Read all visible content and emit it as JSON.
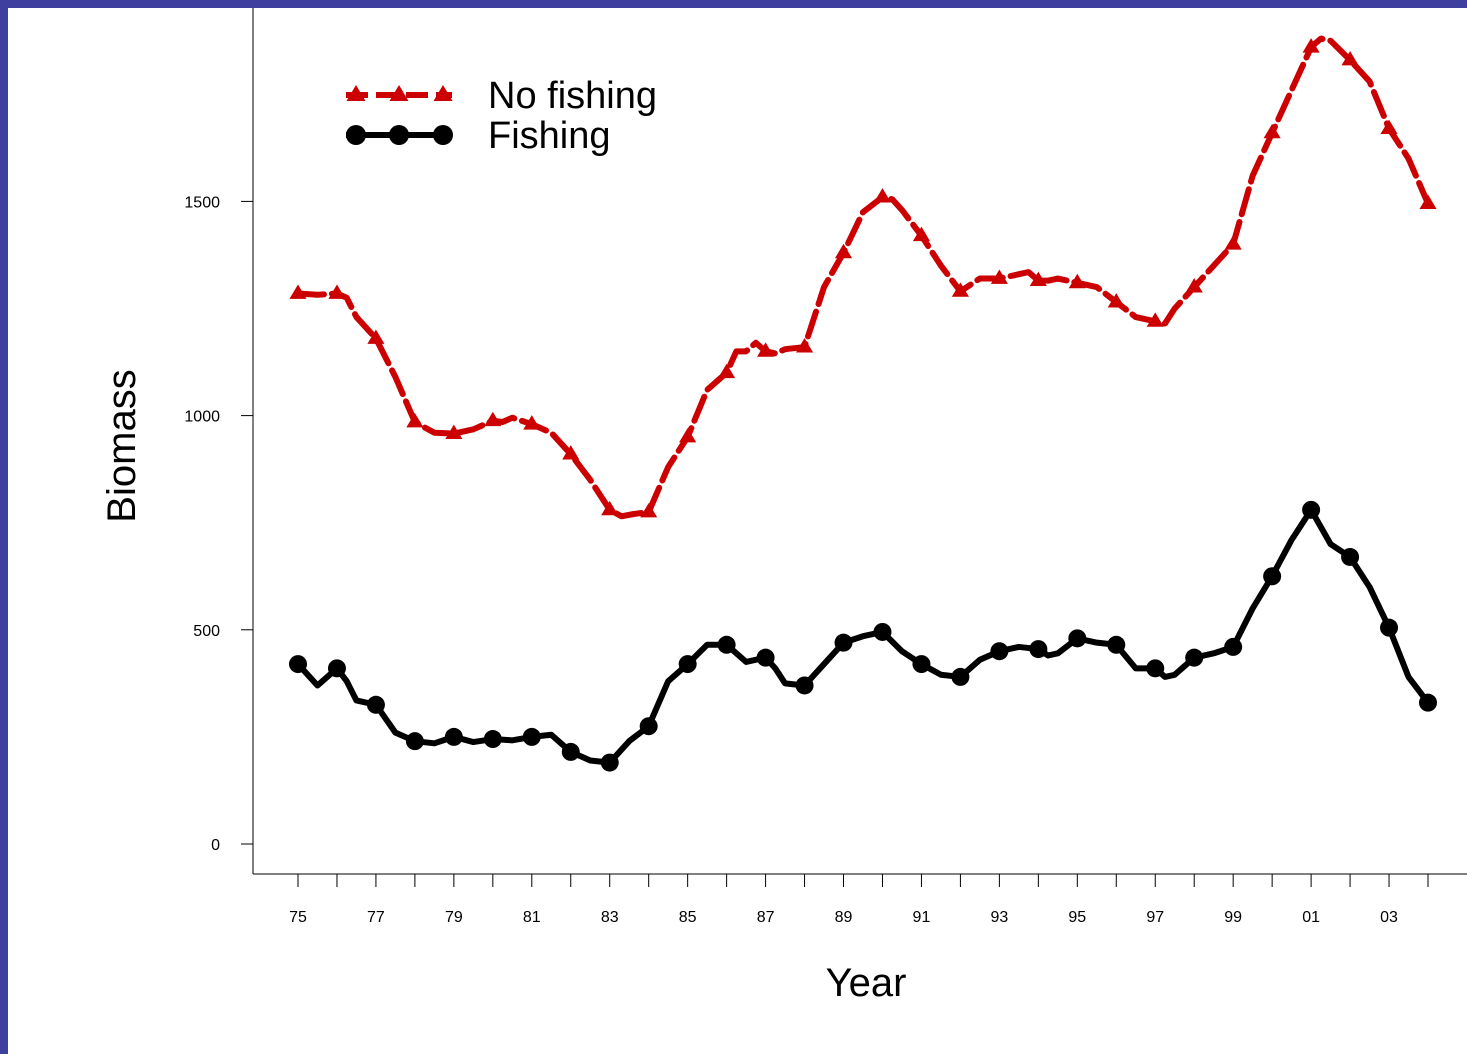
{
  "chart_data": {
    "type": "line",
    "xlabel": "Year",
    "ylabel": "Biomass",
    "xlim": [
      1975,
      2004
    ],
    "ylim": [
      0,
      1900
    ],
    "x_ticks": [
      1975,
      1976,
      1977,
      1978,
      1979,
      1980,
      1981,
      1982,
      1983,
      1984,
      1985,
      1986,
      1987,
      1988,
      1989,
      1990,
      1991,
      1992,
      1993,
      1994,
      1995,
      1996,
      1997,
      1998,
      1999,
      2000,
      2001,
      2002,
      2003,
      2004
    ],
    "x_tick_labels": [
      {
        "x": 1975,
        "label": "75"
      },
      {
        "x": 1977,
        "label": "77"
      },
      {
        "x": 1979,
        "label": "79"
      },
      {
        "x": 1981,
        "label": "81"
      },
      {
        "x": 1983,
        "label": "83"
      },
      {
        "x": 1985,
        "label": "85"
      },
      {
        "x": 1987,
        "label": "87"
      },
      {
        "x": 1989,
        "label": "89"
      },
      {
        "x": 1991,
        "label": "91"
      },
      {
        "x": 1993,
        "label": "93"
      },
      {
        "x": 1995,
        "label": "95"
      },
      {
        "x": 1997,
        "label": "97"
      },
      {
        "x": 1999,
        "label": "99"
      },
      {
        "x": 2001,
        "label": "01"
      },
      {
        "x": 2003,
        "label": "03"
      }
    ],
    "y_ticks": [
      {
        "y": 0,
        "label": "0"
      },
      {
        "y": 500,
        "label": "500"
      },
      {
        "y": 1000,
        "label": "1000"
      },
      {
        "y": 1500,
        "label": "1500"
      }
    ],
    "legend_position": "top-left",
    "series": [
      {
        "name": "No fishing",
        "color": "#cc0000",
        "line_style": "dashed",
        "marker": "triangle",
        "x": [
          1975,
          1975.5,
          1976,
          1976.25,
          1976.5,
          1977,
          1977.5,
          1978,
          1978.5,
          1979,
          1979.5,
          1980,
          1980.25,
          1980.5,
          1981,
          1981.5,
          1982,
          1982.5,
          1983,
          1983.3,
          1983.6,
          1984,
          1984.5,
          1985,
          1985.5,
          1986,
          1986.25,
          1986.5,
          1986.75,
          1987,
          1987.25,
          1987.5,
          1988,
          1988.5,
          1989,
          1989.5,
          1990,
          1990.25,
          1990.5,
          1991,
          1991.5,
          1992,
          1992.5,
          1993,
          1993.5,
          1993.75,
          1994,
          1994.25,
          1994.5,
          1995,
          1995.5,
          1996,
          1996.5,
          1997,
          1997.25,
          1997.5,
          1998,
          1998.5,
          1999,
          1999.5,
          2000,
          2000.5,
          2001,
          2001.25,
          2001.5,
          2002,
          2002.5,
          2003,
          2003.5,
          2004
        ],
        "y": [
          1285,
          1282,
          1285,
          1275,
          1230,
          1180,
          1090,
          985,
          960,
          958,
          968,
          988,
          985,
          995,
          980,
          960,
          910,
          850,
          780,
          765,
          770,
          775,
          880,
          950,
          1060,
          1100,
          1150,
          1150,
          1170,
          1150,
          1145,
          1155,
          1160,
          1300,
          1380,
          1475,
          1510,
          1505,
          1480,
          1420,
          1350,
          1290,
          1320,
          1320,
          1330,
          1335,
          1315,
          1315,
          1320,
          1310,
          1300,
          1265,
          1230,
          1220,
          1215,
          1250,
          1300,
          1350,
          1400,
          1560,
          1660,
          1760,
          1860,
          1880,
          1875,
          1830,
          1780,
          1670,
          1600,
          1495
        ]
      },
      {
        "name": "Fishing",
        "color": "#000000",
        "line_style": "solid",
        "marker": "circle",
        "x": [
          1975,
          1975.5,
          1976,
          1976.25,
          1976.5,
          1977,
          1977.5,
          1978,
          1978.5,
          1979,
          1979.5,
          1980,
          1980.5,
          1981,
          1981.5,
          1982,
          1982.5,
          1983,
          1983.5,
          1984,
          1984.5,
          1985,
          1985.5,
          1986,
          1986.5,
          1987,
          1987.25,
          1987.5,
          1988,
          1988.5,
          1989,
          1989.5,
          1990,
          1990.5,
          1991,
          1991.5,
          1992,
          1992.5,
          1993,
          1993.5,
          1994,
          1994.25,
          1994.5,
          1995,
          1995.5,
          1996,
          1996.5,
          1997,
          1997.25,
          1997.5,
          1998,
          1998.5,
          1999,
          1999.5,
          2000,
          2000.5,
          2001,
          2001.5,
          2002,
          2002.5,
          2003,
          2003.5,
          2004
        ],
        "y": [
          420,
          370,
          410,
          380,
          335,
          325,
          260,
          240,
          235,
          250,
          238,
          245,
          242,
          250,
          255,
          215,
          195,
          190,
          240,
          275,
          380,
          420,
          465,
          465,
          425,
          435,
          410,
          375,
          370,
          420,
          470,
          485,
          495,
          450,
          420,
          395,
          390,
          430,
          450,
          460,
          455,
          440,
          445,
          480,
          470,
          465,
          410,
          410,
          390,
          395,
          435,
          445,
          460,
          550,
          625,
          710,
          780,
          700,
          670,
          600,
          505,
          390,
          330
        ]
      }
    ]
  }
}
